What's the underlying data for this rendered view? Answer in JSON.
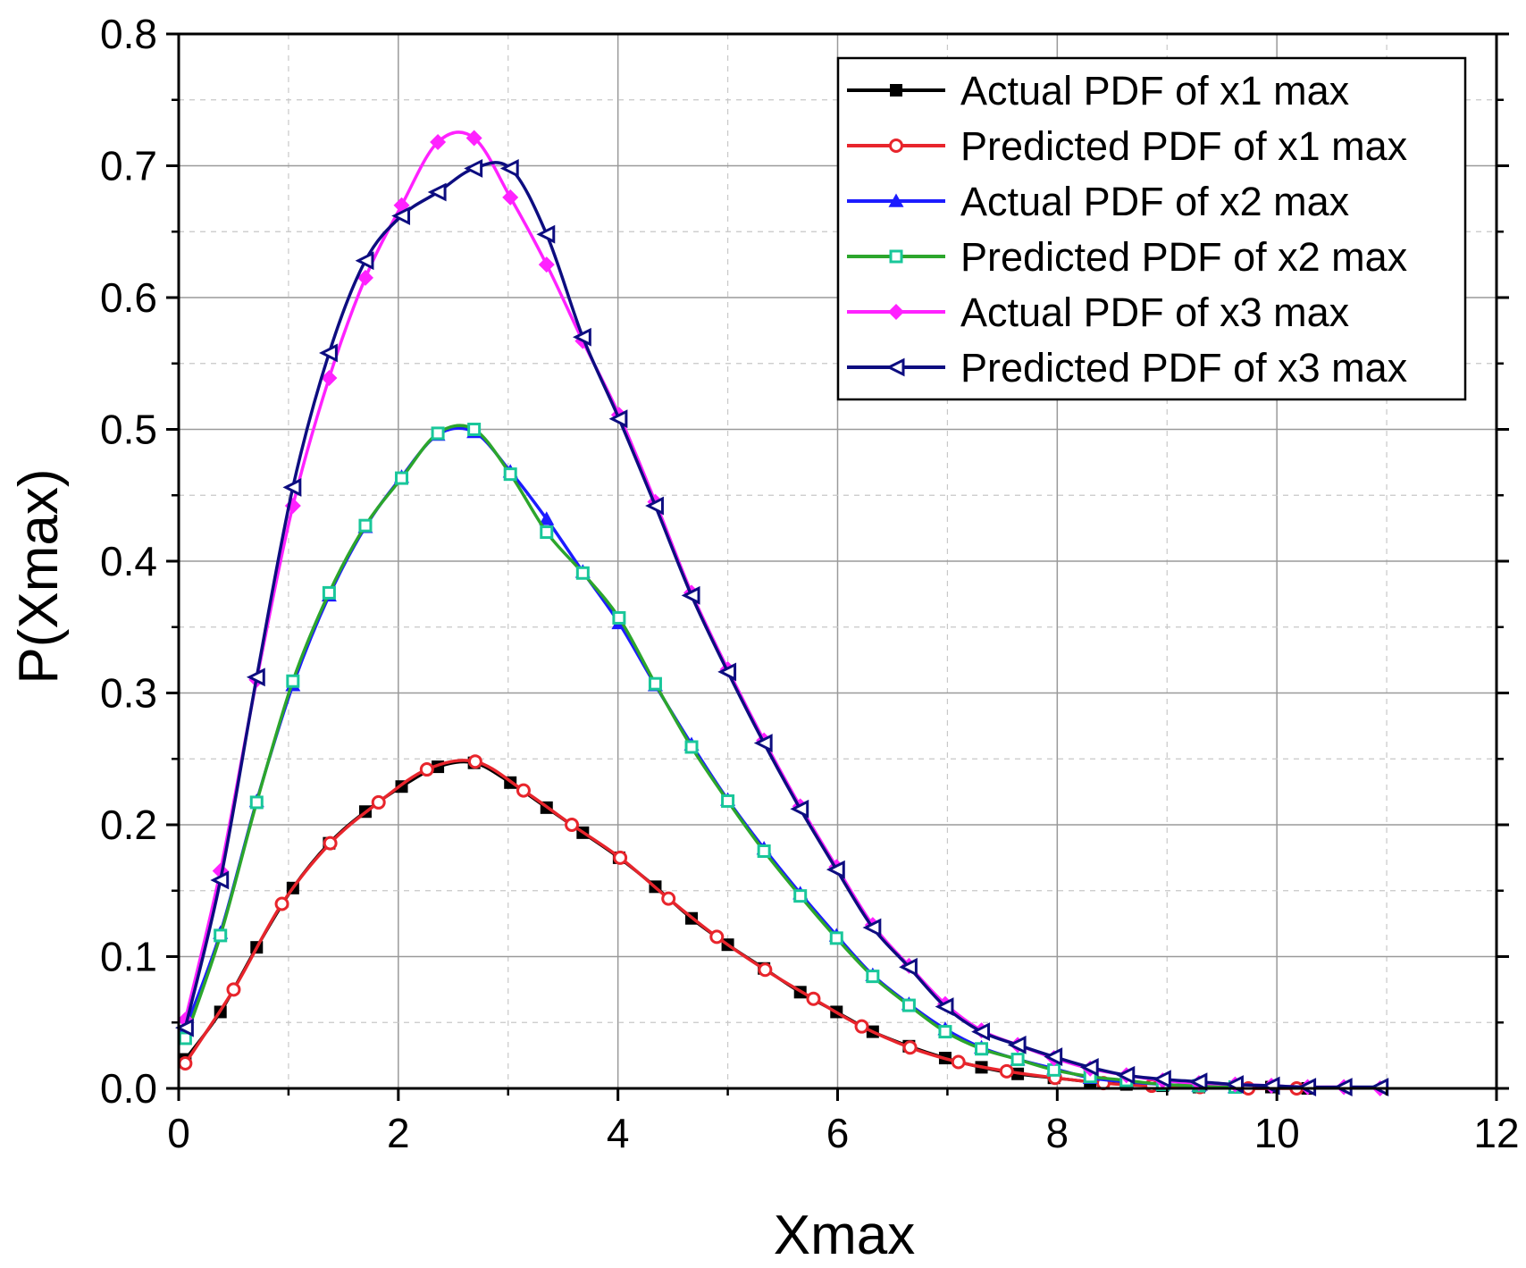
{
  "chart_data": {
    "type": "line",
    "title": "",
    "xlabel": "Xmax",
    "ylabel": "P(Xmax)",
    "xlim": [
      0,
      12
    ],
    "ylim": [
      0,
      0.8
    ],
    "xticks": [
      0,
      2,
      4,
      6,
      8,
      10,
      12
    ],
    "xtick_labels": [
      "0",
      "2",
      "4",
      "6",
      "8",
      "10",
      "12"
    ],
    "yticks": [
      0.0,
      0.1,
      0.2,
      0.3,
      0.4,
      0.5,
      0.6,
      0.7,
      0.8
    ],
    "ytick_labels": [
      "0.0",
      "0.1",
      "0.2",
      "0.3",
      "0.4",
      "0.5",
      "0.6",
      "0.7",
      "0.8"
    ],
    "grid": true,
    "legend_position": "top-right",
    "series": [
      {
        "name": "Actual PDF of x1 max",
        "color": "#000000",
        "marker": "square",
        "x": [
          0.06,
          0.38,
          0.71,
          1.04,
          1.37,
          1.7,
          2.03,
          2.36,
          2.69,
          3.02,
          3.35,
          3.68,
          4.01,
          4.34,
          4.67,
          5.0,
          5.33,
          5.66,
          5.99,
          6.32,
          6.65,
          6.98,
          7.31,
          7.64,
          7.97,
          8.3,
          8.63,
          8.96,
          9.29,
          9.62,
          9.95,
          10.28
        ],
        "y": [
          0.022,
          0.058,
          0.107,
          0.152,
          0.186,
          0.21,
          0.229,
          0.244,
          0.247,
          0.232,
          0.213,
          0.194,
          0.175,
          0.153,
          0.129,
          0.109,
          0.091,
          0.073,
          0.058,
          0.043,
          0.032,
          0.023,
          0.016,
          0.011,
          0.008,
          0.005,
          0.003,
          0.002,
          0.001,
          0.001,
          0.001,
          0.0
        ]
      },
      {
        "name": "Predicted PDF of x1 max",
        "color": "#e8252c",
        "marker": "circle-open",
        "x": [
          0.06,
          0.5,
          0.94,
          1.38,
          1.82,
          2.26,
          2.7,
          3.14,
          3.58,
          4.02,
          4.46,
          4.9,
          5.34,
          5.78,
          6.22,
          6.66,
          7.1,
          7.54,
          7.98,
          8.42,
          8.86,
          9.3,
          9.74,
          10.18
        ],
        "y": [
          0.019,
          0.075,
          0.14,
          0.186,
          0.217,
          0.242,
          0.248,
          0.226,
          0.2,
          0.175,
          0.144,
          0.115,
          0.09,
          0.068,
          0.047,
          0.031,
          0.02,
          0.013,
          0.008,
          0.004,
          0.002,
          0.001,
          0.0,
          0.0
        ]
      },
      {
        "name": "Actual PDF of x2 max",
        "color": "#1c1cff",
        "marker": "triangle-up",
        "x": [
          0.06,
          0.38,
          0.71,
          1.04,
          1.37,
          1.7,
          2.03,
          2.36,
          2.69,
          3.02,
          3.35,
          3.68,
          4.01,
          4.34,
          4.67,
          5.0,
          5.33,
          5.66,
          5.99,
          6.32,
          6.65,
          6.98,
          7.31,
          7.64,
          7.97,
          8.3,
          8.63,
          8.96,
          9.29,
          9.62
        ],
        "y": [
          0.045,
          0.118,
          0.218,
          0.306,
          0.374,
          0.426,
          0.464,
          0.496,
          0.498,
          0.468,
          0.432,
          0.392,
          0.353,
          0.306,
          0.261,
          0.219,
          0.182,
          0.148,
          0.116,
          0.086,
          0.064,
          0.045,
          0.031,
          0.022,
          0.015,
          0.008,
          0.005,
          0.003,
          0.002,
          0.001
        ]
      },
      {
        "name": "Predicted PDF of x2 max",
        "color": "#2ca62c",
        "marker": "square-open",
        "marker_color": "#19c79a",
        "x": [
          0.06,
          0.38,
          0.71,
          1.04,
          1.37,
          1.7,
          2.03,
          2.36,
          2.69,
          3.02,
          3.35,
          3.68,
          4.01,
          4.34,
          4.67,
          5.0,
          5.33,
          5.66,
          5.99,
          6.32,
          6.65,
          6.98,
          7.31,
          7.64,
          7.97,
          8.3,
          8.63,
          8.96,
          9.29,
          9.62
        ],
        "y": [
          0.038,
          0.116,
          0.217,
          0.309,
          0.376,
          0.427,
          0.463,
          0.497,
          0.5,
          0.466,
          0.422,
          0.391,
          0.357,
          0.307,
          0.259,
          0.218,
          0.18,
          0.146,
          0.114,
          0.085,
          0.063,
          0.043,
          0.03,
          0.022,
          0.014,
          0.009,
          0.006,
          0.003,
          0.002,
          0.001
        ]
      },
      {
        "name": "Actual PDF of x3 max",
        "color": "#ff22ff",
        "marker": "diamond",
        "x": [
          0.06,
          0.38,
          0.71,
          1.04,
          1.37,
          1.7,
          2.03,
          2.36,
          2.69,
          3.02,
          3.35,
          3.68,
          4.01,
          4.34,
          4.67,
          5.0,
          5.33,
          5.66,
          5.99,
          6.32,
          6.65,
          6.98,
          7.31,
          7.64,
          7.97,
          8.3,
          8.63,
          8.96,
          9.29,
          9.62,
          9.95,
          10.28,
          10.61,
          10.94
        ],
        "y": [
          0.052,
          0.165,
          0.31,
          0.442,
          0.539,
          0.615,
          0.67,
          0.718,
          0.721,
          0.676,
          0.625,
          0.567,
          0.511,
          0.445,
          0.376,
          0.318,
          0.264,
          0.214,
          0.168,
          0.124,
          0.093,
          0.064,
          0.044,
          0.033,
          0.023,
          0.015,
          0.01,
          0.006,
          0.004,
          0.003,
          0.002,
          0.001,
          0.001,
          0.0
        ]
      },
      {
        "name": "Predicted PDF of x3 max",
        "color": "#0d0d80",
        "marker": "triangle-left-open",
        "x": [
          0.06,
          0.38,
          0.71,
          1.04,
          1.37,
          1.7,
          2.03,
          2.36,
          2.69,
          3.02,
          3.35,
          3.68,
          4.01,
          4.34,
          4.67,
          5.0,
          5.33,
          5.66,
          5.99,
          6.32,
          6.65,
          6.98,
          7.31,
          7.64,
          7.97,
          8.3,
          8.63,
          8.96,
          9.29,
          9.62,
          9.95,
          10.28,
          10.61,
          10.94
        ],
        "y": [
          0.046,
          0.158,
          0.312,
          0.456,
          0.558,
          0.628,
          0.662,
          0.68,
          0.698,
          0.698,
          0.648,
          0.57,
          0.508,
          0.442,
          0.374,
          0.316,
          0.262,
          0.212,
          0.166,
          0.122,
          0.092,
          0.062,
          0.043,
          0.033,
          0.024,
          0.016,
          0.01,
          0.007,
          0.005,
          0.003,
          0.002,
          0.001,
          0.001,
          0.001
        ]
      }
    ]
  }
}
